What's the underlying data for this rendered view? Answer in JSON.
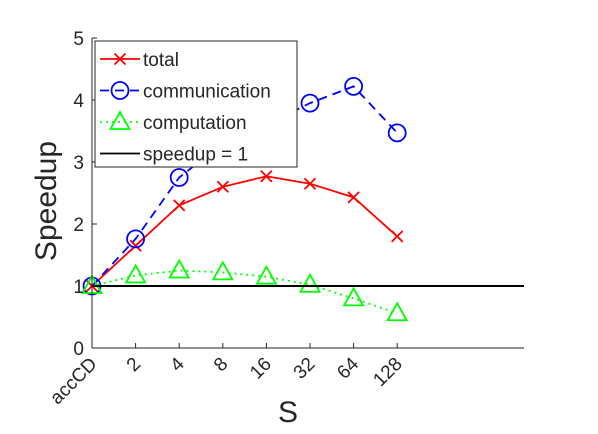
{
  "chart_data": {
    "type": "line",
    "xlabel": "S",
    "ylabel": "Speedup",
    "categories": [
      "accCD",
      "2",
      "4",
      "8",
      "16",
      "32",
      "64",
      "128"
    ],
    "xlim": [
      0,
      7
    ],
    "ylim": [
      0,
      5
    ],
    "yticks": [
      0,
      1,
      2,
      3,
      4,
      5
    ],
    "grid": false,
    "legend_position": "top-left",
    "series": [
      {
        "name": "total",
        "color": "#ff0000",
        "marker": "x",
        "line": "solid",
        "values": [
          1.0,
          1.65,
          2.3,
          2.6,
          2.77,
          2.65,
          2.43,
          1.8
        ]
      },
      {
        "name": "communication",
        "color": "#0000ff",
        "marker": "circle",
        "line": "dashed",
        "values": [
          1.0,
          1.76,
          2.75,
          3.3,
          3.6,
          3.95,
          4.22,
          3.47
        ]
      },
      {
        "name": "computation",
        "color": "#00ff00",
        "marker": "triangle",
        "line": "dotted",
        "values": [
          1.0,
          1.17,
          1.25,
          1.22,
          1.15,
          1.02,
          0.8,
          0.56
        ]
      },
      {
        "name": "speedup = 1",
        "color": "#000000",
        "marker": "none",
        "line": "solid",
        "values": [
          1,
          1,
          1,
          1,
          1,
          1,
          1,
          1
        ]
      }
    ]
  }
}
